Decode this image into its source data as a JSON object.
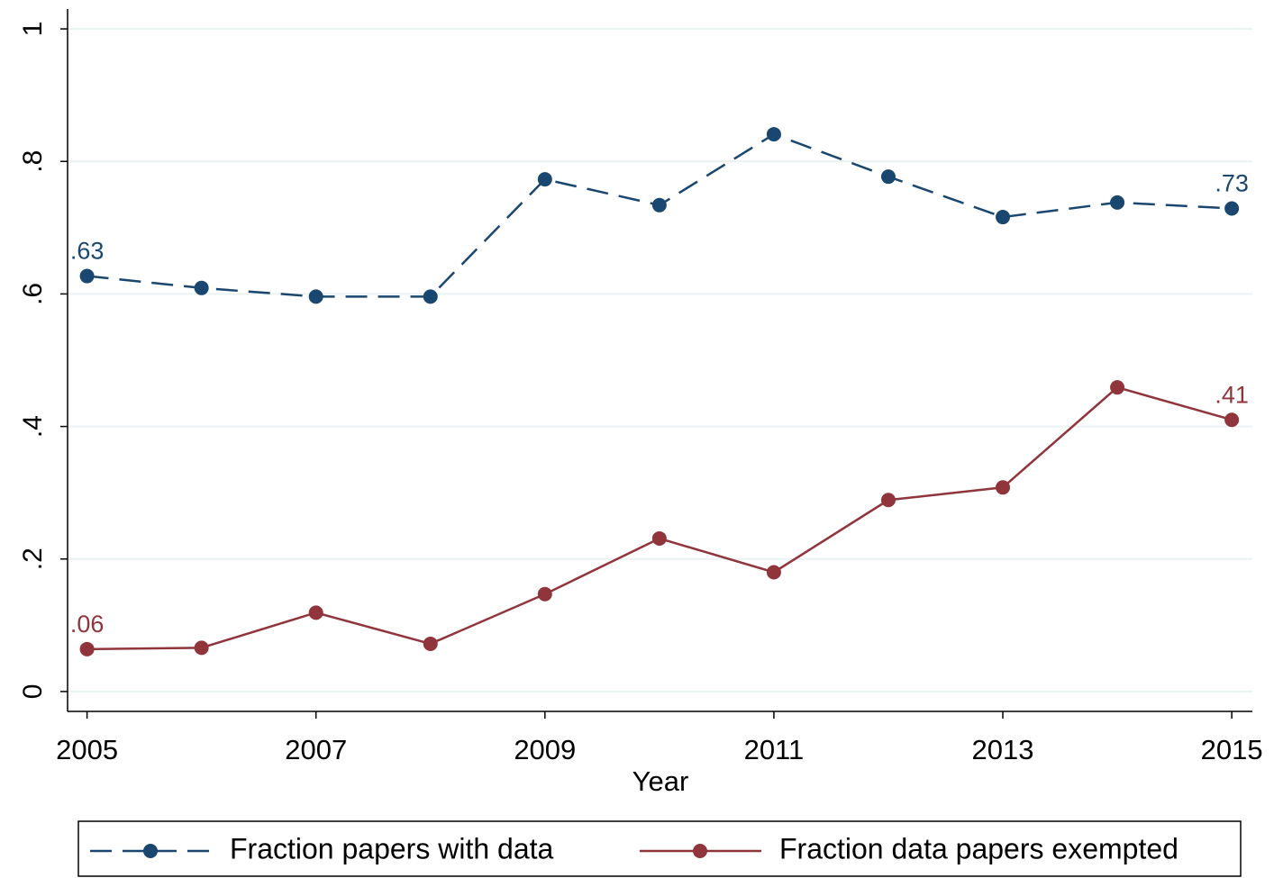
{
  "chart_data": {
    "type": "line",
    "x": [
      2005,
      2006,
      2007,
      2008,
      2009,
      2010,
      2011,
      2012,
      2013,
      2014,
      2015
    ],
    "series": [
      {
        "name": "Fraction papers with data",
        "color": "#1a476f",
        "dash": true,
        "values": [
          0.627,
          0.609,
          0.596,
          0.596,
          0.773,
          0.734,
          0.841,
          0.777,
          0.716,
          0.738,
          0.729
        ],
        "value_labels": [
          ".63",
          null,
          null,
          null,
          null,
          null,
          null,
          null,
          null,
          null,
          ".73"
        ]
      },
      {
        "name": "Fraction data papers exempted",
        "color": "#90353b",
        "dash": false,
        "values": [
          0.064,
          0.066,
          0.119,
          0.072,
          0.147,
          0.231,
          0.18,
          0.289,
          0.308,
          0.459,
          0.41
        ],
        "value_labels": [
          ".06",
          null,
          null,
          null,
          null,
          null,
          null,
          null,
          null,
          null,
          ".41"
        ]
      }
    ],
    "xlabel": "Year",
    "xlim": [
      2004.83,
      2015.18
    ],
    "xticks": [
      2005,
      2007,
      2009,
      2011,
      2013,
      2015
    ],
    "ylim": [
      -0.03,
      1.03
    ],
    "yticks": [
      0,
      {
        "value": 0.2,
        "label": ".2"
      },
      {
        "value": 0.4,
        "label": ".4"
      },
      {
        "value": 0.6,
        "label": ".6"
      },
      {
        "value": 0.8,
        "label": ".8"
      },
      1
    ],
    "grid": true,
    "legend": "bottom"
  }
}
